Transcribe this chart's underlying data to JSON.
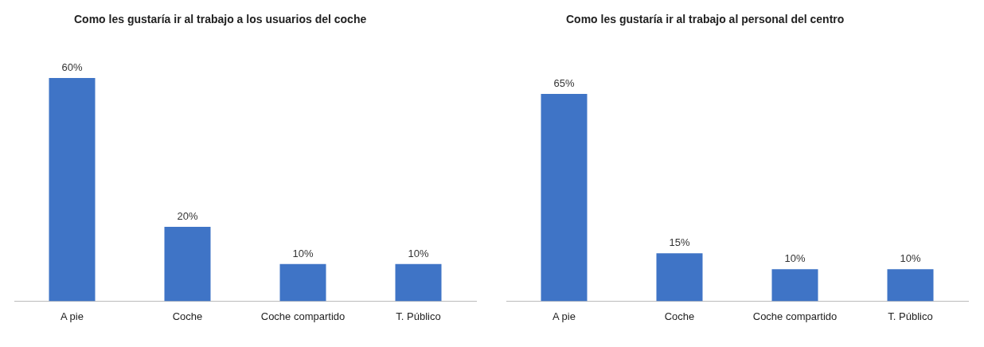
{
  "chart_data": [
    {
      "type": "bar",
      "title": "Como les gustaría ir al trabajo a los usuarios del coche",
      "categories": [
        "A pie",
        "Coche",
        "Coche compartido",
        "T. Público"
      ],
      "values": [
        60,
        20,
        10,
        10
      ],
      "value_labels": [
        "60%",
        "20%",
        "10%",
        "10%"
      ],
      "color": "#3f74c6",
      "grid": false,
      "legend": false,
      "tick_labels": "x"
    },
    {
      "type": "bar",
      "title": "Como les gustaría ir al trabajo al personal del centro",
      "categories": [
        "A pie",
        "Coche",
        "Coche compartido",
        "T. Público"
      ],
      "values": [
        65,
        15,
        10,
        10
      ],
      "value_labels": [
        "65%",
        "15%",
        "10%",
        "10%"
      ],
      "color": "#3f74c6",
      "grid": false,
      "legend": false,
      "tick_labels": "x"
    }
  ]
}
